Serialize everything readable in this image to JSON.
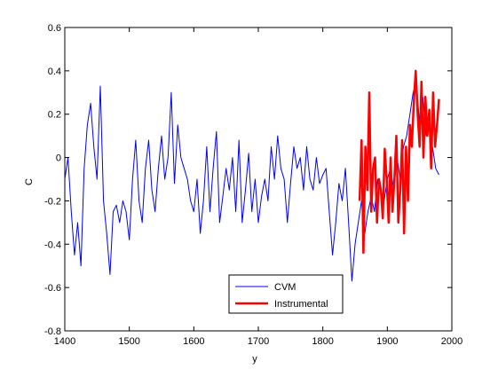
{
  "chart_data": {
    "type": "line",
    "title": "",
    "xlabel": "y",
    "ylabel": "C",
    "xlim": [
      1400,
      2000
    ],
    "ylim": [
      -0.8,
      0.6
    ],
    "xticks": [
      1400,
      1500,
      1600,
      1700,
      1800,
      1900,
      2000
    ],
    "yticks": [
      -0.8,
      -0.6,
      -0.4,
      -0.2,
      0,
      0.2,
      0.4,
      0.6
    ],
    "xtick_labels": [
      "1400",
      "1500",
      "1600",
      "1700",
      "1800",
      "1900",
      "2000"
    ],
    "ytick_labels": [
      "-0.8",
      "-0.6",
      "-0.4",
      "-0.2",
      "0",
      "0.2",
      "0.4",
      "0.6"
    ],
    "grid": false,
    "legend_position": "bottom-center",
    "series": [
      {
        "name": "CVM",
        "color": "#0000ff",
        "x": [
          1400,
          1405,
          1410,
          1415,
          1420,
          1425,
          1430,
          1435,
          1440,
          1445,
          1450,
          1455,
          1460,
          1465,
          1470,
          1475,
          1480,
          1485,
          1490,
          1495,
          1500,
          1505,
          1510,
          1515,
          1520,
          1525,
          1530,
          1535,
          1540,
          1545,
          1550,
          1555,
          1560,
          1565,
          1570,
          1575,
          1580,
          1585,
          1590,
          1595,
          1600,
          1605,
          1610,
          1615,
          1620,
          1625,
          1630,
          1635,
          1640,
          1645,
          1650,
          1655,
          1660,
          1665,
          1670,
          1675,
          1680,
          1685,
          1690,
          1695,
          1700,
          1705,
          1710,
          1715,
          1720,
          1725,
          1730,
          1735,
          1740,
          1745,
          1750,
          1755,
          1760,
          1765,
          1770,
          1775,
          1780,
          1785,
          1790,
          1795,
          1800,
          1805,
          1810,
          1815,
          1820,
          1825,
          1830,
          1835,
          1840,
          1845,
          1850,
          1855,
          1860,
          1865,
          1870,
          1875,
          1880,
          1885,
          1890,
          1895,
          1900,
          1905,
          1910,
          1915,
          1920,
          1925,
          1930,
          1935,
          1940,
          1945,
          1950,
          1955,
          1960,
          1965,
          1970,
          1975,
          1980
        ],
        "y": [
          -0.1,
          0.0,
          -0.25,
          -0.45,
          -0.3,
          -0.5,
          -0.05,
          0.15,
          0.25,
          0.05,
          -0.1,
          0.33,
          -0.2,
          -0.35,
          -0.54,
          -0.25,
          -0.22,
          -0.3,
          -0.2,
          -0.25,
          -0.38,
          -0.1,
          0.08,
          -0.2,
          -0.3,
          -0.05,
          0.08,
          -0.15,
          -0.25,
          -0.05,
          0.1,
          -0.1,
          0.0,
          0.3,
          -0.12,
          0.15,
          0.0,
          -0.05,
          -0.1,
          -0.2,
          -0.25,
          -0.1,
          -0.35,
          -0.2,
          0.05,
          -0.25,
          -0.05,
          0.12,
          -0.3,
          -0.18,
          -0.05,
          -0.15,
          0.0,
          -0.25,
          0.08,
          -0.3,
          -0.15,
          0.02,
          -0.25,
          -0.1,
          -0.3,
          -0.18,
          -0.1,
          -0.2,
          0.05,
          -0.1,
          0.1,
          -0.05,
          -0.1,
          -0.3,
          -0.12,
          0.05,
          -0.05,
          0.0,
          -0.15,
          0.05,
          -0.1,
          -0.15,
          0.0,
          -0.12,
          -0.08,
          -0.05,
          -0.25,
          -0.45,
          -0.3,
          -0.12,
          -0.2,
          -0.05,
          -0.3,
          -0.57,
          -0.4,
          -0.3,
          -0.2,
          -0.35,
          -0.25,
          -0.18,
          -0.25,
          -0.1,
          -0.15,
          -0.2,
          -0.1,
          -0.05,
          -0.15,
          0.0,
          -0.1,
          0.05,
          0.1,
          0.2,
          0.3,
          0.35,
          0.15,
          0.28,
          0.1,
          0.2,
          0.05,
          -0.05,
          -0.08
        ]
      },
      {
        "name": "Instrumental",
        "color": "#ff0000",
        "x": [
          1857,
          1860,
          1863,
          1866,
          1869,
          1872,
          1875,
          1878,
          1881,
          1884,
          1887,
          1890,
          1893,
          1896,
          1899,
          1902,
          1905,
          1908,
          1911,
          1914,
          1917,
          1920,
          1923,
          1926,
          1929,
          1932,
          1935,
          1938,
          1941,
          1944,
          1947,
          1950,
          1953,
          1956,
          1959,
          1962,
          1965,
          1968,
          1971,
          1974,
          1977,
          1980
        ],
        "y": [
          -0.2,
          0.08,
          -0.44,
          0.05,
          -0.15,
          0.3,
          -0.25,
          -0.05,
          0.0,
          -0.3,
          -0.1,
          -0.15,
          -0.28,
          0.04,
          -0.1,
          -0.3,
          0.0,
          -0.25,
          -0.1,
          0.1,
          -0.3,
          -0.15,
          0.08,
          -0.35,
          0.05,
          -0.2,
          0.15,
          0.05,
          0.25,
          0.4,
          0.2,
          0.05,
          0.35,
          0.0,
          0.28,
          0.1,
          0.22,
          -0.05,
          0.3,
          0.05,
          0.15,
          0.27
        ]
      }
    ]
  }
}
